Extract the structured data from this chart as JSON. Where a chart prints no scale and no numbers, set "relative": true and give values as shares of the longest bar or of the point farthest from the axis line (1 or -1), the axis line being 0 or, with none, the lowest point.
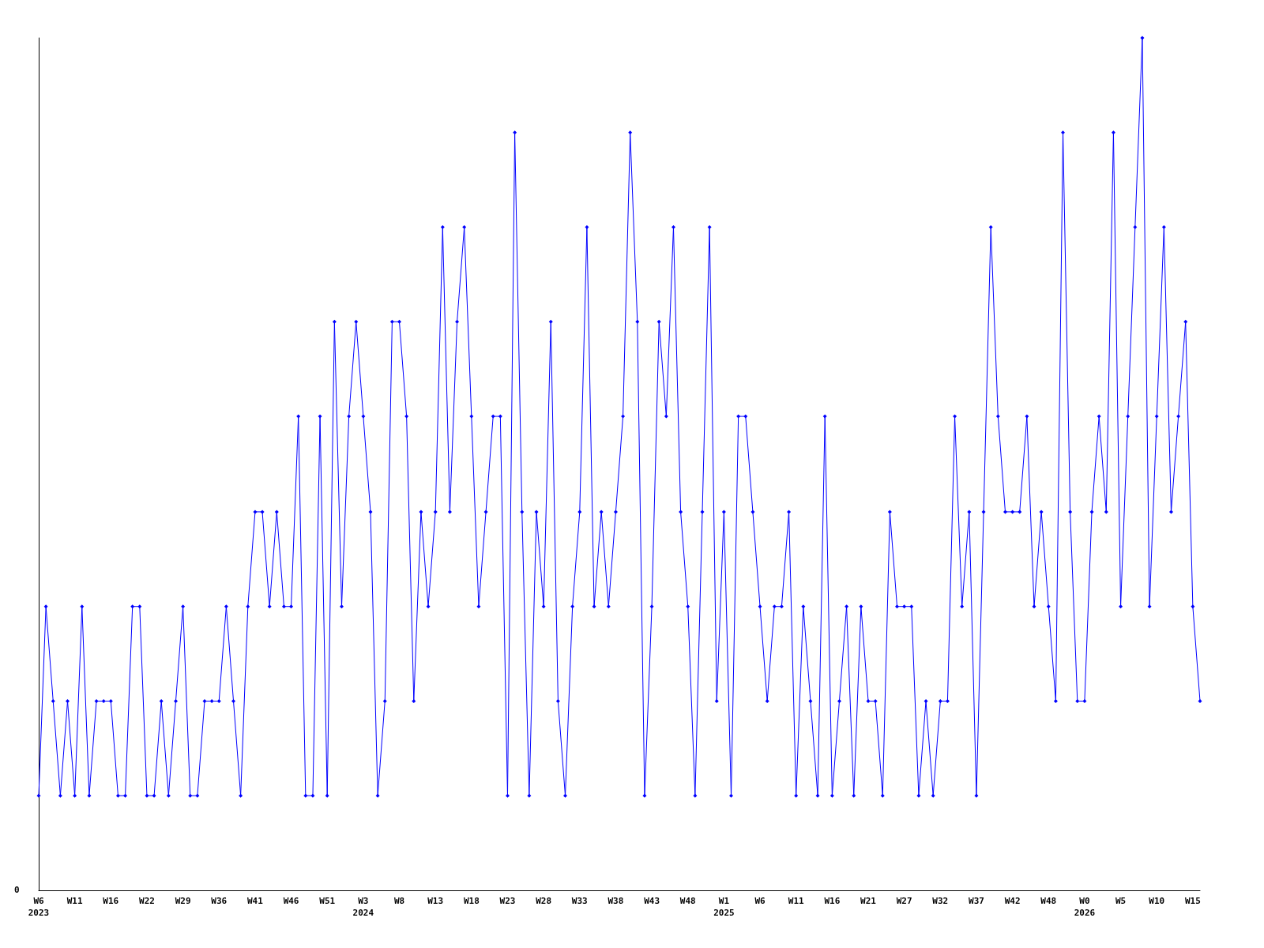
{
  "chart_data": {
    "type": "line",
    "relative": true,
    "color": "#0000ff",
    "marker": "diamond",
    "line_style": "solid",
    "annotations": [
      "0"
    ],
    "categories": [
      "W6\n2023",
      null,
      null,
      null,
      null,
      "W11",
      null,
      null,
      null,
      null,
      "W16",
      null,
      null,
      null,
      null,
      "W22",
      null,
      null,
      null,
      null,
      "W29",
      null,
      null,
      null,
      null,
      "W36",
      null,
      null,
      null,
      null,
      "W41",
      null,
      null,
      null,
      null,
      "W46",
      null,
      null,
      null,
      null,
      "W51",
      null,
      null,
      null,
      null,
      "W3\n2024",
      null,
      null,
      null,
      null,
      "W8",
      null,
      null,
      null,
      null,
      "W13",
      null,
      null,
      null,
      null,
      "W18",
      null,
      null,
      null,
      null,
      "W23",
      null,
      null,
      null,
      null,
      "W28",
      null,
      null,
      null,
      null,
      "W33",
      null,
      null,
      null,
      null,
      "W38",
      null,
      null,
      null,
      null,
      "W43",
      null,
      null,
      null,
      null,
      "W48",
      null,
      null,
      null,
      null,
      "W1\n2025",
      null,
      null,
      null,
      null,
      "W6",
      null,
      null,
      null,
      null,
      "W11",
      null,
      null,
      null,
      null,
      "W16",
      null,
      null,
      null,
      null,
      "W21",
      null,
      null,
      null,
      null,
      "W27",
      null,
      null,
      null,
      null,
      "W32",
      null,
      null,
      null,
      null,
      "W37",
      null,
      null,
      null,
      null,
      "W42",
      null,
      null,
      null,
      null,
      "W48",
      null,
      null,
      null,
      null,
      "W0\n2026",
      null,
      null,
      null,
      null,
      "W5",
      null,
      null,
      null,
      null,
      "W10",
      null,
      null,
      null,
      null,
      "W15",
      null
    ],
    "values": [
      0.111,
      0.333,
      0.222,
      0.111,
      0.222,
      0.111,
      0.333,
      0.111,
      0.222,
      0.222,
      0.222,
      0.111,
      0.111,
      0.333,
      0.333,
      0.111,
      0.111,
      0.222,
      0.111,
      0.222,
      0.333,
      0.111,
      0.111,
      0.222,
      0.222,
      0.222,
      0.333,
      0.222,
      0.111,
      0.333,
      0.444,
      0.444,
      0.333,
      0.444,
      0.333,
      0.333,
      0.556,
      0.111,
      0.111,
      0.556,
      0.111,
      0.667,
      0.333,
      0.556,
      0.667,
      0.556,
      0.444,
      0.111,
      0.222,
      0.667,
      0.667,
      0.556,
      0.222,
      0.444,
      0.333,
      0.444,
      0.778,
      0.444,
      0.667,
      0.778,
      0.556,
      0.333,
      0.444,
      0.556,
      0.556,
      0.111,
      0.889,
      0.444,
      0.111,
      0.444,
      0.333,
      0.667,
      0.222,
      0.111,
      0.333,
      0.444,
      0.778,
      0.333,
      0.444,
      0.333,
      0.444,
      0.556,
      0.889,
      0.667,
      0.111,
      0.333,
      0.667,
      0.556,
      0.778,
      0.444,
      0.333,
      0.111,
      0.444,
      0.778,
      0.222,
      0.444,
      0.111,
      0.556,
      0.556,
      0.444,
      0.333,
      0.222,
      0.333,
      0.333,
      0.444,
      0.111,
      0.333,
      0.222,
      0.111,
      0.556,
      0.111,
      0.222,
      0.333,
      0.111,
      0.333,
      0.222,
      0.222,
      0.111,
      0.444,
      0.333,
      0.333,
      0.333,
      0.111,
      0.222,
      0.111,
      0.222,
      0.222,
      0.556,
      0.333,
      0.444,
      0.111,
      0.444,
      0.778,
      0.556,
      0.444,
      0.444,
      0.444,
      0.556,
      0.333,
      0.444,
      0.333,
      0.222,
      0.889,
      0.444,
      0.222,
      0.222,
      0.444,
      0.556,
      0.444,
      0.889,
      0.333,
      0.556,
      0.778,
      1,
      0.333,
      0.556,
      0.778,
      0.444,
      0.556,
      0.667,
      0.333,
      0.222
    ]
  }
}
